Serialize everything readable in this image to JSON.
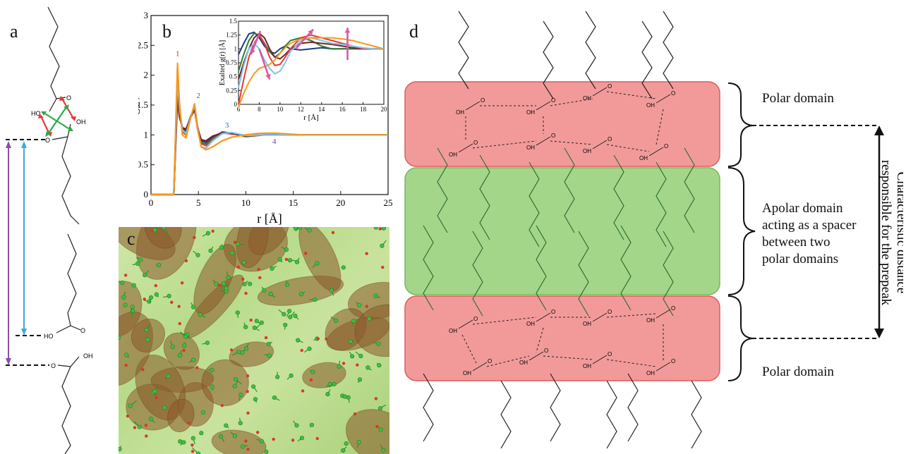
{
  "panels": {
    "a": {
      "letter": "a",
      "atom_labels": {
        "o": "O",
        "oh": "OH",
        "ho": "HO"
      }
    },
    "b": {
      "letter": "b",
      "main": {
        "xlabel": "r [Å]",
        "ylabel": "g(r)",
        "xticks": [
          "0",
          "5",
          "10",
          "15",
          "20",
          "25"
        ],
        "yticks": [
          "0",
          "0.5",
          "1",
          "1.5",
          "2",
          "2.5",
          "3"
        ],
        "peak_labels": [
          "1",
          "2",
          "3",
          "4"
        ]
      },
      "inset": {
        "xlabel": "r [Å]",
        "ylabel": "Exalted g(r) [Å]",
        "xticks": [
          "6",
          "8",
          "10",
          "12",
          "14",
          "16",
          "18",
          "20"
        ],
        "yticks": [
          "0",
          "0.25",
          "0.5",
          "0.75",
          "1",
          "1.25",
          "1.5"
        ]
      }
    },
    "c": {
      "letter": "c"
    },
    "d": {
      "letter": "d",
      "labels": {
        "top": "Polar domain",
        "middle": [
          "Apolar domain",
          "acting as a spacer",
          "between two",
          "polar domains"
        ],
        "bottom": "Polar domain",
        "vertical": [
          "Characteristic distance",
          "responsible for the prepeak"
        ]
      },
      "atom_labels": {
        "o": "O",
        "oh": "OH",
        "ho": "HO"
      }
    }
  },
  "colors": {
    "polar_fill": "#f29a9a",
    "polar_stroke": "#e05a5a",
    "apolar_fill": "#a4d68a",
    "apolar_stroke": "#78b85a",
    "purple": "#8b4fa8",
    "cyan": "#3fa9dd",
    "red": "#e53935",
    "green": "#2eaa4a",
    "magenta": "#d85aa8"
  },
  "chart_data": [
    {
      "type": "line",
      "title": "",
      "xlabel": "r [Å]",
      "ylabel": "g(r)",
      "xlim": [
        0,
        25
      ],
      "ylim": [
        0,
        3
      ],
      "series": [
        {
          "color": "#e53935",
          "x": [
            0,
            2.4,
            2.6,
            2.8,
            3.0,
            3.3,
            3.7,
            4.2,
            4.6,
            4.9,
            5.3,
            5.8,
            6.5,
            7.5,
            8.5,
            10,
            12,
            14,
            16,
            18,
            20,
            22,
            25
          ],
          "y": [
            0,
            0,
            1.0,
            2.1,
            1.5,
            1.05,
            1.0,
            1.3,
            1.5,
            1.15,
            0.85,
            0.82,
            0.92,
            1.05,
            1.03,
            0.97,
            1.0,
            1.01,
            1.0,
            1.0,
            1.0,
            1.0,
            1.0
          ]
        },
        {
          "color": "#2e7d32",
          "x": [
            0,
            2.4,
            2.6,
            2.8,
            3.0,
            3.3,
            3.7,
            4.2,
            4.6,
            4.9,
            5.3,
            5.8,
            6.5,
            7.5,
            8.5,
            10,
            12,
            14,
            16,
            18,
            20,
            22,
            25
          ],
          "y": [
            0,
            0,
            0.9,
            1.85,
            1.4,
            1.1,
            1.05,
            1.3,
            1.48,
            1.1,
            0.87,
            0.85,
            0.95,
            1.04,
            1.02,
            0.98,
            1.0,
            1.0,
            1.0,
            1.0,
            1.0,
            1.0,
            1.0
          ]
        },
        {
          "color": "#1e3a8a",
          "x": [
            0,
            2.4,
            2.6,
            2.8,
            3.0,
            3.3,
            3.7,
            4.2,
            4.6,
            4.9,
            5.3,
            5.8,
            6.5,
            7.5,
            8.5,
            10,
            12,
            14,
            16,
            18,
            20,
            22,
            25
          ],
          "y": [
            0,
            0,
            0.85,
            1.7,
            1.35,
            1.12,
            1.08,
            1.32,
            1.45,
            1.12,
            0.9,
            0.88,
            0.97,
            1.04,
            1.02,
            0.99,
            1.0,
            1.0,
            1.0,
            1.0,
            1.0,
            1.0,
            1.0
          ]
        },
        {
          "color": "#7b1f2b",
          "x": [
            0,
            2.4,
            2.6,
            2.8,
            3.0,
            3.3,
            3.7,
            4.2,
            4.6,
            4.9,
            5.3,
            5.8,
            6.5,
            7.5,
            8.5,
            10,
            12,
            14,
            16,
            18,
            20,
            22,
            25
          ],
          "y": [
            0,
            0,
            0.8,
            1.6,
            1.3,
            1.12,
            1.1,
            1.3,
            1.42,
            1.12,
            0.92,
            0.9,
            0.98,
            1.03,
            1.02,
            0.99,
            1.0,
            1.0,
            1.0,
            1.0,
            1.0,
            1.0,
            1.0
          ]
        },
        {
          "color": "#7fc4ec",
          "x": [
            0,
            2.4,
            2.6,
            2.8,
            3.0,
            3.3,
            3.7,
            4.2,
            4.6,
            4.9,
            5.3,
            5.8,
            6.5,
            7.5,
            8.5,
            10,
            12,
            14,
            16,
            18,
            20,
            22,
            25
          ],
          "y": [
            0,
            0,
            0.95,
            1.95,
            1.45,
            1.08,
            1.02,
            1.3,
            1.5,
            1.12,
            0.8,
            0.78,
            0.9,
            1.02,
            1.04,
            0.99,
            1.0,
            1.0,
            1.0,
            1.0,
            1.0,
            1.0,
            1.0
          ]
        },
        {
          "color": "#f39a1f",
          "x": [
            0,
            2.4,
            2.6,
            2.8,
            3.0,
            3.3,
            3.7,
            4.2,
            4.6,
            4.9,
            5.3,
            5.8,
            6.5,
            7.5,
            8.5,
            10,
            11,
            12,
            13,
            14,
            16,
            18,
            20,
            22,
            25
          ],
          "y": [
            0,
            0,
            1.1,
            2.2,
            1.55,
            1.0,
            0.95,
            1.3,
            1.52,
            1.1,
            0.8,
            0.75,
            0.8,
            0.9,
            0.96,
            1.0,
            1.02,
            1.03,
            1.03,
            1.02,
            1.0,
            1.0,
            1.0,
            1.0,
            1.0
          ]
        }
      ]
    },
    {
      "type": "line",
      "title": "",
      "xlabel": "r [Å]",
      "ylabel": "Exalted g(r) [Å]",
      "xlim": [
        6,
        20
      ],
      "ylim": [
        0,
        1.5
      ],
      "series": [
        {
          "color": "#1e3a8a",
          "x": [
            6,
            6.5,
            7,
            7.5,
            8,
            8.5,
            9,
            9.5,
            10,
            10.5,
            11,
            12,
            13,
            14,
            15,
            16,
            17,
            18,
            19,
            20
          ],
          "y": [
            0.9,
            1.1,
            1.27,
            1.3,
            1.2,
            1.05,
            0.95,
            0.92,
            1.0,
            1.05,
            1.0,
            0.98,
            1.0,
            1.02,
            1.0,
            1.0,
            1.0,
            1.0,
            1.0,
            1.0
          ]
        },
        {
          "color": "#2e7d32",
          "x": [
            6,
            6.5,
            7,
            7.5,
            8,
            8.5,
            9,
            9.5,
            10,
            10.5,
            11,
            12,
            13,
            14,
            15,
            16,
            17,
            18,
            19,
            20
          ],
          "y": [
            0.6,
            0.9,
            1.15,
            1.28,
            1.25,
            1.1,
            0.95,
            0.85,
            0.92,
            1.05,
            1.15,
            1.2,
            1.15,
            1.05,
            1.0,
            1.0,
            1.0,
            1.0,
            1.0,
            1.0
          ]
        },
        {
          "color": "#7b1f2b",
          "x": [
            6,
            6.5,
            7,
            7.5,
            8,
            8.5,
            9,
            9.5,
            10,
            10.5,
            11,
            12,
            13,
            14,
            15,
            16,
            17,
            18,
            19,
            20
          ],
          "y": [
            0.45,
            0.75,
            1.0,
            1.2,
            1.28,
            1.2,
            1.0,
            0.85,
            0.82,
            0.9,
            1.0,
            1.1,
            1.12,
            1.1,
            1.08,
            1.05,
            1.02,
            1.0,
            1.0,
            1.0
          ]
        },
        {
          "color": "#e53935",
          "x": [
            6,
            6.5,
            7,
            7.5,
            8,
            8.5,
            9,
            9.5,
            10,
            10.5,
            11,
            12,
            13,
            14,
            15,
            16,
            17,
            18,
            19,
            20
          ],
          "y": [
            0.0,
            0.45,
            0.85,
            1.1,
            1.25,
            1.1,
            0.85,
            0.7,
            0.72,
            0.85,
            1.0,
            1.2,
            1.25,
            1.2,
            1.15,
            1.1,
            1.05,
            1.0,
            1.0,
            1.0
          ]
        },
        {
          "color": "#7fc4ec",
          "x": [
            6,
            6.5,
            7,
            7.5,
            8,
            8.5,
            9,
            9.5,
            10,
            10.5,
            11,
            12,
            13,
            14,
            15,
            16,
            17,
            18,
            19,
            20
          ],
          "y": [
            0.3,
            0.7,
            1.0,
            1.1,
            1.0,
            0.8,
            0.65,
            0.55,
            0.6,
            0.75,
            0.95,
            1.15,
            1.2,
            1.15,
            1.1,
            1.08,
            1.05,
            1.02,
            1.0,
            1.0
          ]
        },
        {
          "color": "#f39a1f",
          "x": [
            6,
            6.5,
            7,
            7.5,
            8,
            8.5,
            9,
            9.5,
            10,
            10.5,
            11,
            12,
            13,
            14,
            15,
            16,
            17,
            18,
            19,
            20
          ],
          "y": [
            -0.1,
            0.2,
            0.4,
            0.55,
            0.65,
            0.68,
            0.72,
            0.8,
            0.92,
            1.02,
            1.1,
            1.18,
            1.2,
            1.2,
            1.2,
            1.18,
            1.15,
            1.1,
            1.05,
            1.0
          ]
        }
      ]
    }
  ]
}
